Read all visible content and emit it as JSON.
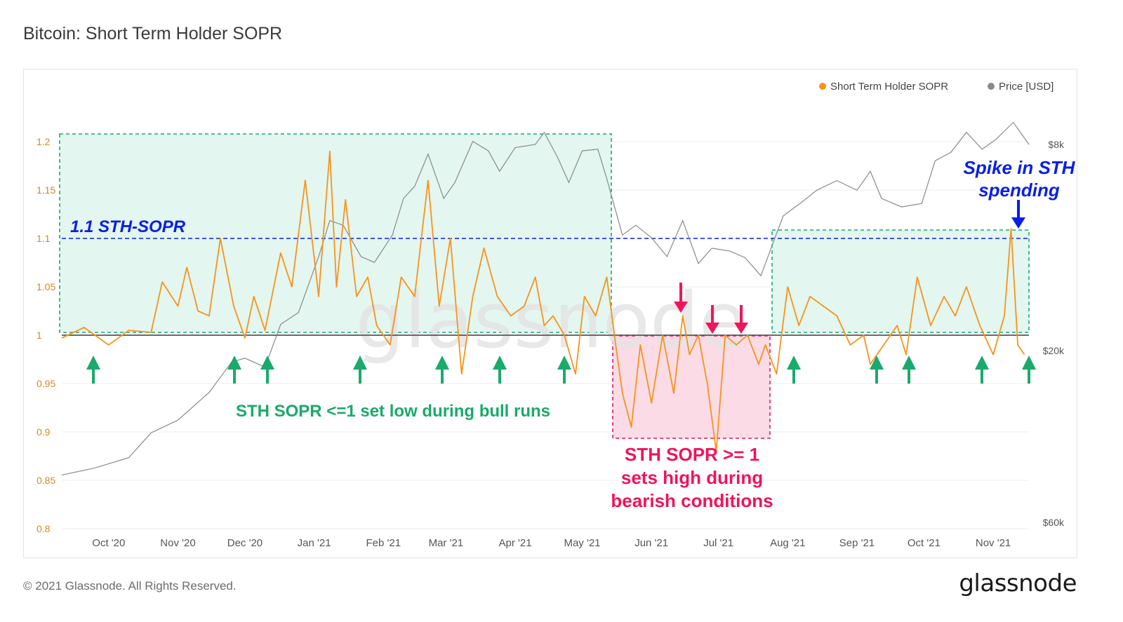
{
  "title": "Bitcoin: Short Term Holder SOPR",
  "footer": {
    "copyright": "© 2021 Glassnode. All Rights Reserved.",
    "logo": "glassnode"
  },
  "watermark": "glassnode",
  "colors": {
    "sopr": "#f7931a",
    "price": "#8a8a8a",
    "baseline": "#555555",
    "green": "#1aaa6b",
    "green_fill": "#e3f6ef",
    "red": "#f0145a",
    "red_fill": "#fadbe6",
    "blue": "#0a1ee6",
    "axis_left": "#d4881f",
    "axis_right": "#555555"
  },
  "annotations": {
    "sopr_level": "1.1 STH-SOPR",
    "bull": "STH SOPR <=1 set low during bull runs",
    "bear": [
      "STH SOPR >= 1",
      "sets high during",
      "bearish conditions"
    ],
    "spike": [
      "Spike in STH",
      "spending"
    ]
  },
  "chart_data": {
    "type": "line",
    "title": "Bitcoin: Short Term Holder SOPR",
    "legend": [
      "Short Term Holder SOPR",
      "Price [USD]"
    ],
    "legend_position": "top-right",
    "x_range": [
      "2020-09-10",
      "2021-11-17"
    ],
    "x_ticks": [
      "Oct '20",
      "Nov '20",
      "Dec '20",
      "Jan '21",
      "Feb '21",
      "Mar '21",
      "Apr '21",
      "May '21",
      "Jun '21",
      "Jul '21",
      "Aug '21",
      "Sep '21",
      "Oct '21",
      "Nov '21"
    ],
    "y_left": {
      "label": "",
      "range": [
        0.8,
        1.22
      ],
      "ticks": [
        "0.8",
        "0.85",
        "0.9",
        "0.95",
        "1",
        "1.05",
        "1.1",
        "1.15",
        "1.2"
      ]
    },
    "y_right": {
      "label": "",
      "scale": "log",
      "range": [
        8000,
        80000
      ],
      "ticks": [
        "$8k",
        "$20k",
        "$60k"
      ]
    },
    "grid": true,
    "series": [
      {
        "name": "Short Term Holder SOPR",
        "dates": [
          "2020-09-10",
          "2020-09-20",
          "2020-10-01",
          "2020-10-10",
          "2020-10-20",
          "2020-10-25",
          "2020-11-01",
          "2020-11-05",
          "2020-11-10",
          "2020-11-15",
          "2020-11-20",
          "2020-11-26",
          "2020-12-01",
          "2020-12-05",
          "2020-12-10",
          "2020-12-17",
          "2020-12-22",
          "2020-12-28",
          "2021-01-03",
          "2021-01-08",
          "2021-01-11",
          "2021-01-15",
          "2021-01-20",
          "2021-01-25",
          "2021-01-29",
          "2021-02-04",
          "2021-02-09",
          "2021-02-15",
          "2021-02-21",
          "2021-02-26",
          "2021-03-03",
          "2021-03-08",
          "2021-03-13",
          "2021-03-18",
          "2021-03-24",
          "2021-03-30",
          "2021-04-05",
          "2021-04-10",
          "2021-04-14",
          "2021-04-18",
          "2021-04-23",
          "2021-04-28",
          "2021-05-02",
          "2021-05-07",
          "2021-05-12",
          "2021-05-16",
          "2021-05-19",
          "2021-05-23",
          "2021-05-27",
          "2021-06-01",
          "2021-06-06",
          "2021-06-11",
          "2021-06-15",
          "2021-06-18",
          "2021-06-22",
          "2021-06-26",
          "2021-06-30",
          "2021-07-04",
          "2021-07-09",
          "2021-07-14",
          "2021-07-19",
          "2021-07-22",
          "2021-07-27",
          "2021-08-01",
          "2021-08-06",
          "2021-08-11",
          "2021-08-17",
          "2021-08-23",
          "2021-08-29",
          "2021-09-04",
          "2021-09-07",
          "2021-09-13",
          "2021-09-19",
          "2021-09-23",
          "2021-09-28",
          "2021-10-04",
          "2021-10-10",
          "2021-10-15",
          "2021-10-20",
          "2021-10-26",
          "2021-11-01",
          "2021-11-06",
          "2021-11-09",
          "2021-11-12",
          "2021-11-15"
        ],
        "values": [
          0.997,
          1.008,
          0.99,
          1.005,
          1.003,
          1.055,
          1.03,
          1.07,
          1.025,
          1.02,
          1.1,
          1.03,
          0.997,
          1.04,
          1.005,
          1.085,
          1.05,
          1.16,
          1.04,
          1.19,
          1.05,
          1.14,
          1.04,
          1.06,
          1.01,
          0.99,
          1.06,
          1.04,
          1.16,
          1.03,
          1.1,
          0.96,
          1.04,
          1.09,
          1.04,
          1.02,
          1.03,
          1.06,
          1.01,
          1.02,
          1.0,
          0.96,
          1.04,
          1.02,
          1.06,
          0.99,
          0.94,
          0.905,
          0.99,
          0.93,
          1.0,
          0.94,
          1.02,
          0.98,
          1.0,
          0.95,
          0.88,
          1.0,
          0.99,
          1.0,
          0.97,
          0.99,
          0.96,
          1.05,
          1.01,
          1.04,
          1.03,
          1.02,
          0.99,
          1.0,
          0.97,
          0.99,
          1.01,
          0.98,
          1.06,
          1.01,
          1.04,
          1.02,
          1.05,
          1.01,
          0.98,
          1.02,
          1.11,
          0.99,
          0.98
        ]
      },
      {
        "name": "Price [USD]",
        "dates": [
          "2020-09-10",
          "2020-09-25",
          "2020-10-10",
          "2020-10-20",
          "2020-11-01",
          "2020-11-15",
          "2020-11-25",
          "2020-12-01",
          "2020-12-10",
          "2020-12-17",
          "2020-12-25",
          "2021-01-03",
          "2021-01-08",
          "2021-01-14",
          "2021-01-22",
          "2021-01-28",
          "2021-02-05",
          "2021-02-10",
          "2021-02-15",
          "2021-02-21",
          "2021-02-28",
          "2021-03-05",
          "2021-03-13",
          "2021-03-20",
          "2021-03-25",
          "2021-04-01",
          "2021-04-10",
          "2021-04-14",
          "2021-04-20",
          "2021-04-25",
          "2021-05-01",
          "2021-05-08",
          "2021-05-12",
          "2021-05-19",
          "2021-05-25",
          "2021-06-01",
          "2021-06-08",
          "2021-06-15",
          "2021-06-22",
          "2021-06-28",
          "2021-07-06",
          "2021-07-13",
          "2021-07-20",
          "2021-07-25",
          "2021-07-30",
          "2021-08-07",
          "2021-08-14",
          "2021-08-23",
          "2021-09-01",
          "2021-09-07",
          "2021-09-12",
          "2021-09-21",
          "2021-09-30",
          "2021-10-06",
          "2021-10-13",
          "2021-10-20",
          "2021-10-27",
          "2021-11-02",
          "2021-11-10",
          "2021-11-17"
        ],
        "values": [
          10300,
          10700,
          11300,
          12900,
          13800,
          16000,
          18800,
          19200,
          18300,
          23000,
          24500,
          33000,
          40000,
          39000,
          33000,
          32000,
          37000,
          45000,
          48000,
          57000,
          45000,
          49000,
          61000,
          58000,
          52000,
          59000,
          60000,
          64000,
          56000,
          49000,
          58000,
          58500,
          50000,
          37000,
          39000,
          36500,
          33000,
          40000,
          31800,
          34500,
          34000,
          32800,
          29800,
          35000,
          41000,
          44000,
          47000,
          49500,
          47000,
          52000,
          45000,
          43000,
          43800,
          55000,
          57500,
          64000,
          58500,
          61500,
          67500,
          60000
        ]
      }
    ]
  }
}
